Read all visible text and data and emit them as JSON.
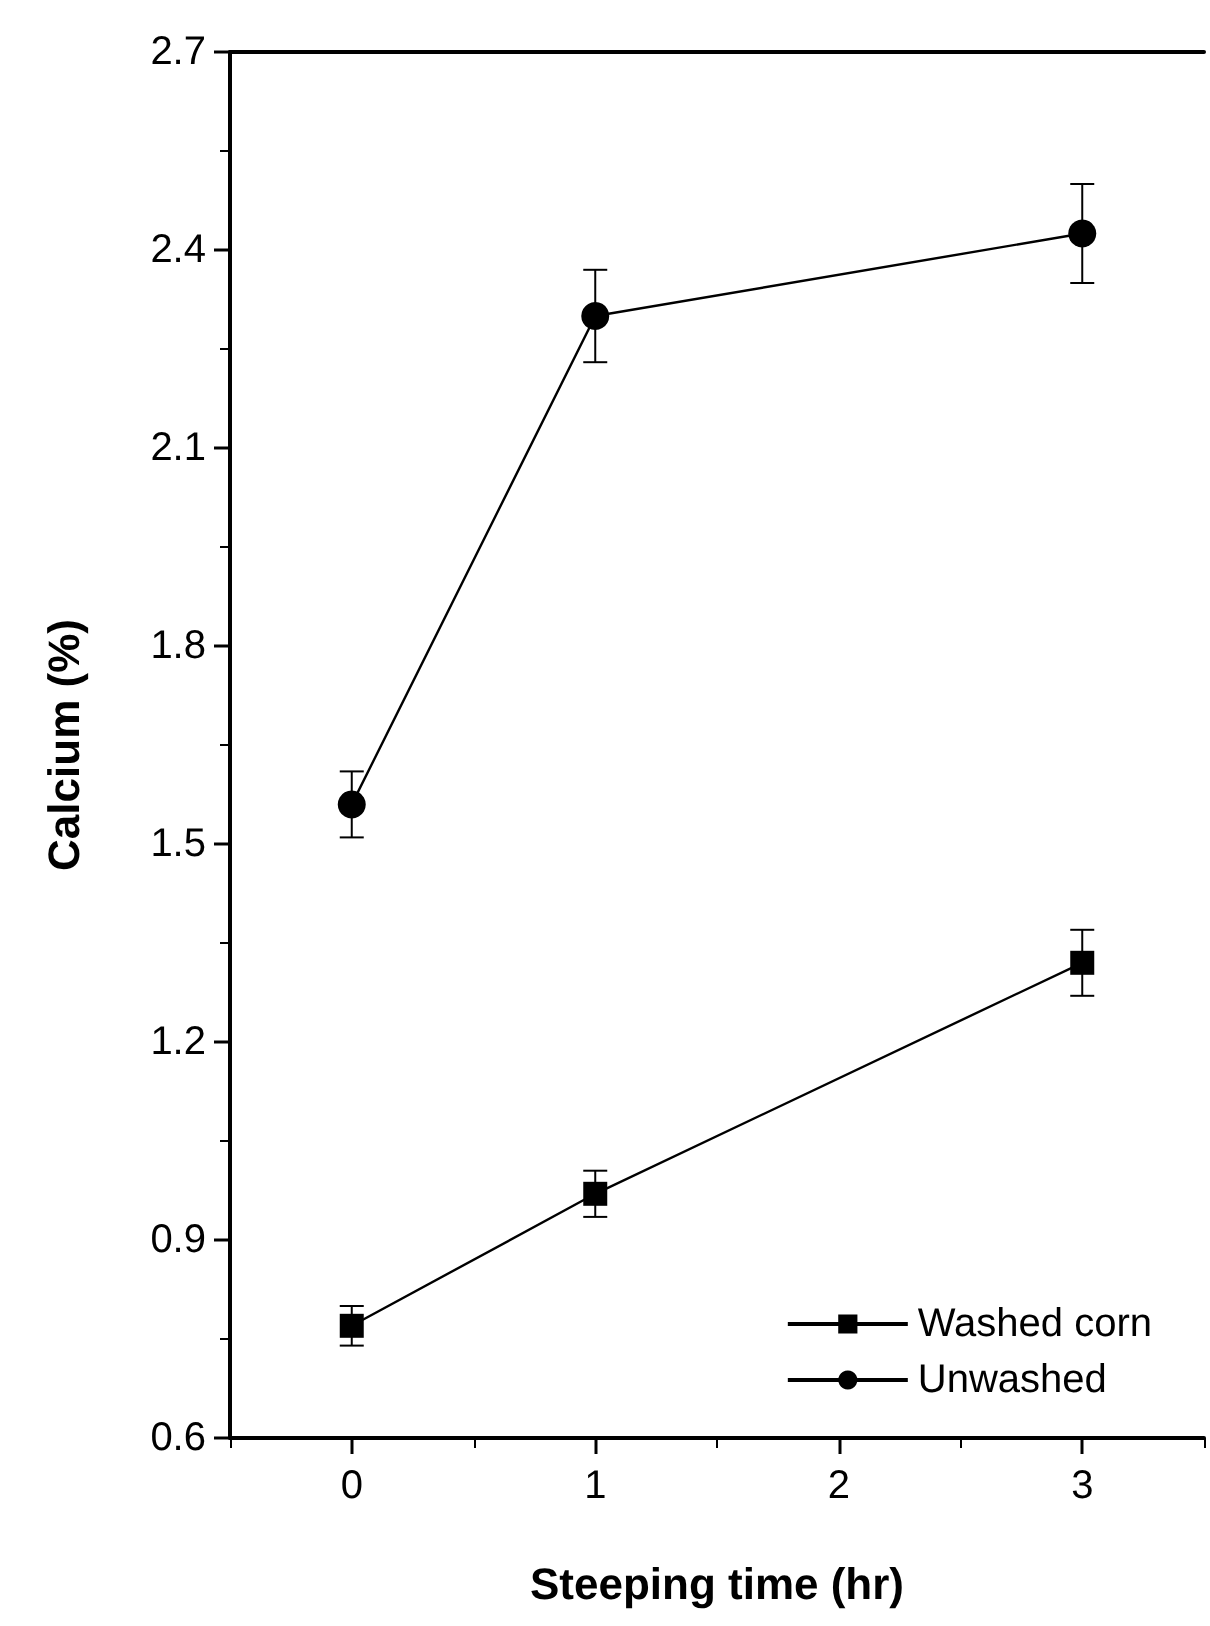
{
  "chart_data": {
    "type": "line",
    "xlabel": "Steeping time (hr)",
    "ylabel": "Calcium (%)",
    "xlim": [
      -0.5,
      3.5
    ],
    "xticks": [
      0,
      1,
      2,
      3
    ],
    "ylim": [
      0.6,
      2.7
    ],
    "yticks": [
      0.6,
      0.9,
      1.2,
      1.5,
      1.8,
      2.1,
      2.4,
      2.7
    ],
    "grid": false,
    "legend": "bottom right",
    "line_style": "solid",
    "series": [
      {
        "name": "Washed corn",
        "color": "#000000",
        "marker": "square",
        "x": [
          0,
          1,
          3
        ],
        "values": [
          0.77,
          0.97,
          1.32
        ],
        "errors": [
          0.03,
          0.035,
          0.05
        ]
      },
      {
        "name": "Unwashed",
        "color": "#000000",
        "marker": "circle",
        "x": [
          0,
          1,
          3
        ],
        "values": [
          1.56,
          2.3,
          2.425
        ],
        "errors": [
          0.05,
          0.07,
          0.075
        ]
      }
    ]
  }
}
